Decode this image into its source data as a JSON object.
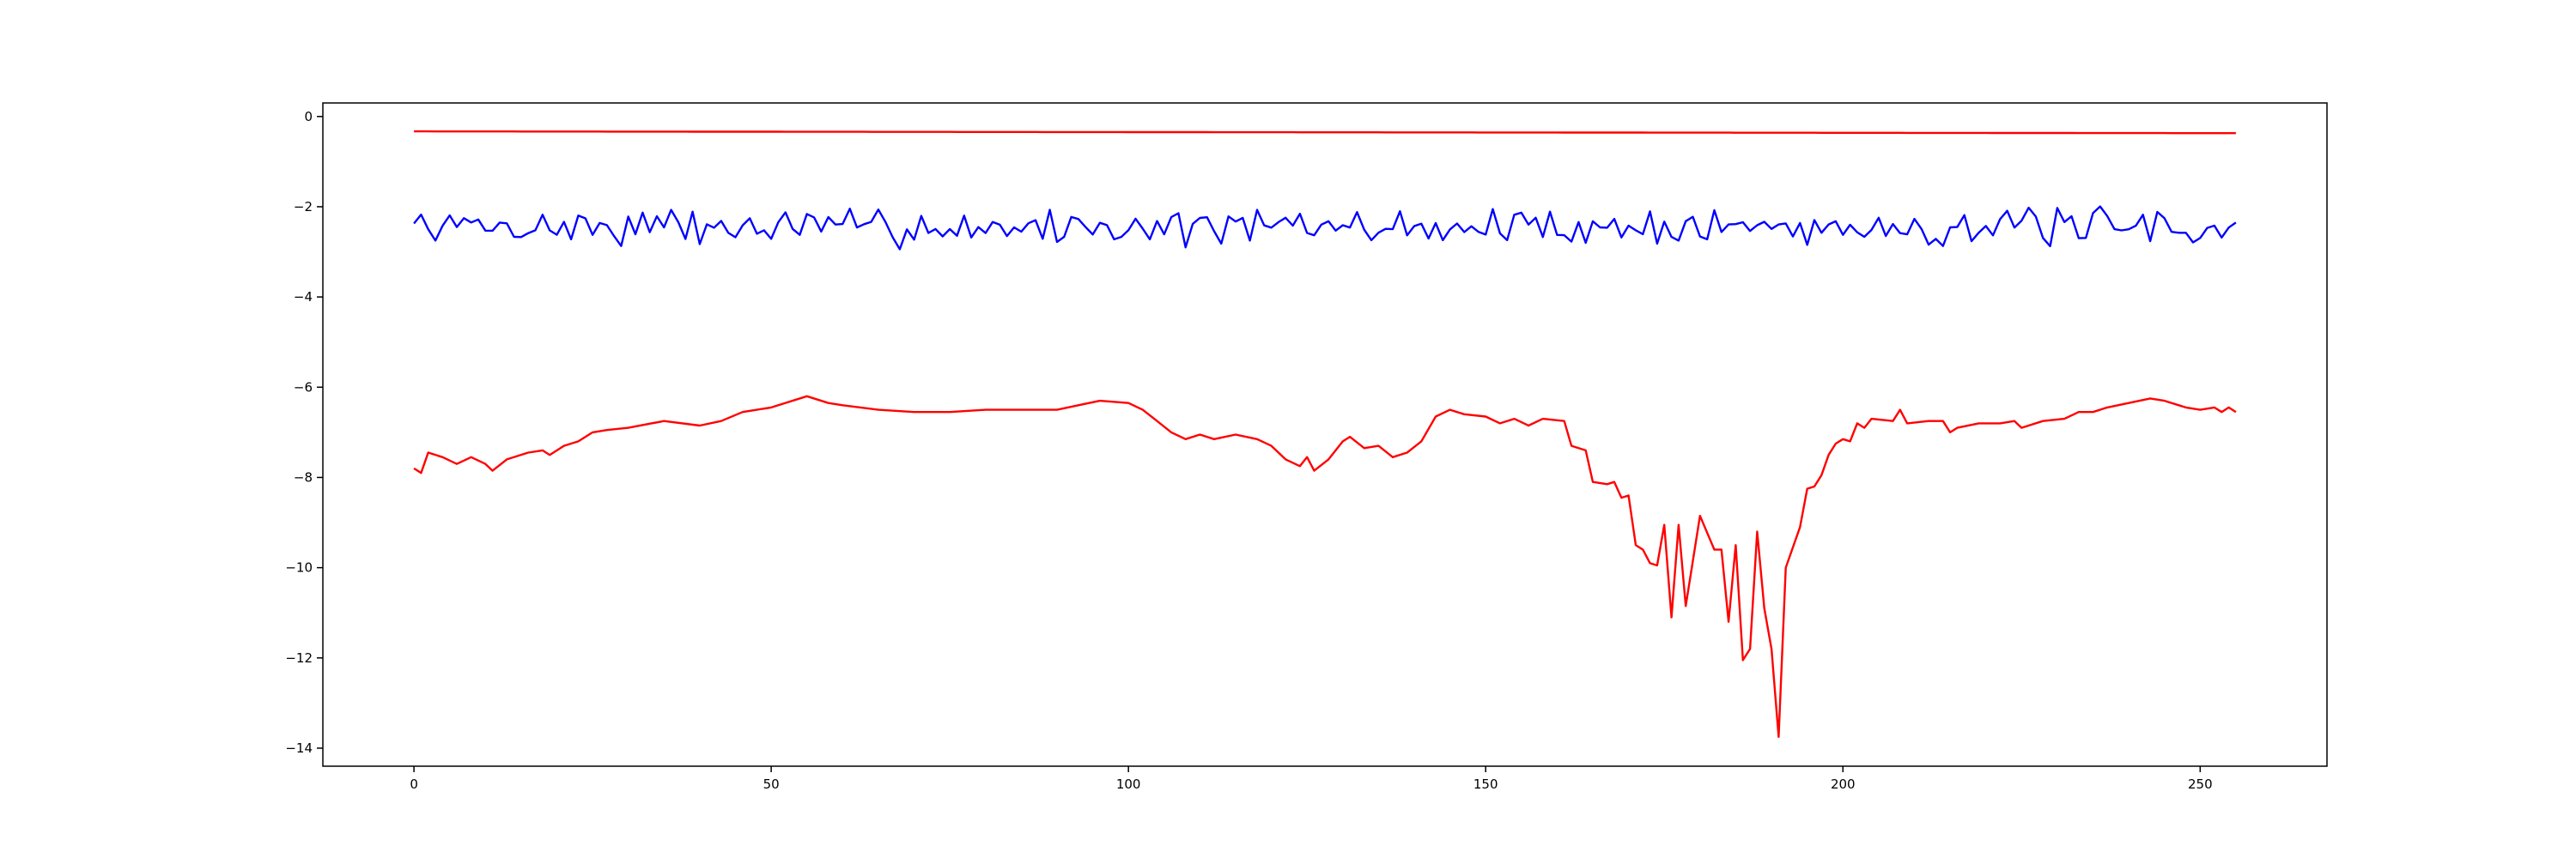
{
  "chart_data": {
    "type": "line",
    "title": "",
    "xlabel": "",
    "ylabel": "",
    "xlim": [
      -12.75,
      267.75
    ],
    "ylim": [
      -14.4,
      0.3
    ],
    "grid": false,
    "legend": "none",
    "xticks": [
      0,
      50,
      100,
      150,
      200,
      250
    ],
    "yticks": [
      0,
      -2,
      -4,
      -6,
      -8,
      -10,
      -12,
      -14
    ],
    "x_start": 0,
    "x_step": 1,
    "series": [
      {
        "color": "#ff0000",
        "style": "linear",
        "values": [
          -0.33,
          -0.37
        ]
      },
      {
        "color": "#0000ff",
        "style": "noise",
        "seed": 7,
        "mean": -2.45,
        "amplitude": 0.32,
        "count": 256
      },
      {
        "color": "#ff0000",
        "style": "points",
        "values": [
          [
            0,
            -7.8
          ],
          [
            1,
            -7.9
          ],
          [
            2,
            -7.45
          ],
          [
            4,
            -7.55
          ],
          [
            6,
            -7.7
          ],
          [
            8,
            -7.55
          ],
          [
            10,
            -7.7
          ],
          [
            11,
            -7.85
          ],
          [
            13,
            -7.6
          ],
          [
            16,
            -7.45
          ],
          [
            18,
            -7.4
          ],
          [
            19,
            -7.5
          ],
          [
            21,
            -7.3
          ],
          [
            23,
            -7.2
          ],
          [
            25,
            -7.0
          ],
          [
            27,
            -6.95
          ],
          [
            30,
            -6.9
          ],
          [
            35,
            -6.75
          ],
          [
            40,
            -6.85
          ],
          [
            43,
            -6.75
          ],
          [
            46,
            -6.55
          ],
          [
            50,
            -6.45
          ],
          [
            55,
            -6.2
          ],
          [
            58,
            -6.35
          ],
          [
            60,
            -6.4
          ],
          [
            65,
            -6.5
          ],
          [
            70,
            -6.55
          ],
          [
            75,
            -6.55
          ],
          [
            80,
            -6.5
          ],
          [
            85,
            -6.5
          ],
          [
            90,
            -6.5
          ],
          [
            93,
            -6.4
          ],
          [
            96,
            -6.3
          ],
          [
            100,
            -6.35
          ],
          [
            102,
            -6.5
          ],
          [
            104,
            -6.75
          ],
          [
            106,
            -7.0
          ],
          [
            108,
            -7.15
          ],
          [
            110,
            -7.05
          ],
          [
            112,
            -7.15
          ],
          [
            115,
            -7.05
          ],
          [
            118,
            -7.15
          ],
          [
            120,
            -7.3
          ],
          [
            122,
            -7.6
          ],
          [
            124,
            -7.75
          ],
          [
            125,
            -7.55
          ],
          [
            126,
            -7.85
          ],
          [
            128,
            -7.6
          ],
          [
            130,
            -7.2
          ],
          [
            131,
            -7.1
          ],
          [
            133,
            -7.35
          ],
          [
            135,
            -7.3
          ],
          [
            137,
            -7.55
          ],
          [
            139,
            -7.45
          ],
          [
            141,
            -7.2
          ],
          [
            143,
            -6.65
          ],
          [
            145,
            -6.5
          ],
          [
            147,
            -6.6
          ],
          [
            150,
            -6.65
          ],
          [
            152,
            -6.8
          ],
          [
            154,
            -6.7
          ],
          [
            156,
            -6.85
          ],
          [
            158,
            -6.7
          ],
          [
            161,
            -6.75
          ],
          [
            162,
            -7.3
          ],
          [
            164,
            -7.4
          ],
          [
            165,
            -8.1
          ],
          [
            167,
            -8.15
          ],
          [
            168,
            -8.1
          ],
          [
            169,
            -8.45
          ],
          [
            170,
            -8.4
          ],
          [
            171,
            -9.5
          ],
          [
            172,
            -9.6
          ],
          [
            173,
            -9.9
          ],
          [
            174,
            -9.95
          ],
          [
            175,
            -9.05
          ],
          [
            176,
            -11.1
          ],
          [
            177,
            -9.05
          ],
          [
            178,
            -10.85
          ],
          [
            180,
            -8.85
          ],
          [
            182,
            -9.6
          ],
          [
            183,
            -9.6
          ],
          [
            184,
            -11.2
          ],
          [
            185,
            -9.5
          ],
          [
            186,
            -12.05
          ],
          [
            187,
            -11.8
          ],
          [
            188,
            -9.2
          ],
          [
            189,
            -10.9
          ],
          [
            190,
            -11.8
          ],
          [
            191,
            -13.75
          ],
          [
            192,
            -10.0
          ],
          [
            194,
            -9.1
          ],
          [
            195,
            -8.25
          ],
          [
            196,
            -8.2
          ],
          [
            197,
            -7.95
          ],
          [
            198,
            -7.5
          ],
          [
            199,
            -7.25
          ],
          [
            200,
            -7.15
          ],
          [
            201,
            -7.2
          ],
          [
            202,
            -6.8
          ],
          [
            203,
            -6.9
          ],
          [
            204,
            -6.7
          ],
          [
            207,
            -6.75
          ],
          [
            208,
            -6.5
          ],
          [
            209,
            -6.8
          ],
          [
            212,
            -6.75
          ],
          [
            214,
            -6.75
          ],
          [
            215,
            -7.0
          ],
          [
            216,
            -6.9
          ],
          [
            219,
            -6.8
          ],
          [
            222,
            -6.8
          ],
          [
            224,
            -6.75
          ],
          [
            225,
            -6.9
          ],
          [
            228,
            -6.75
          ],
          [
            231,
            -6.7
          ],
          [
            233,
            -6.55
          ],
          [
            235,
            -6.55
          ],
          [
            237,
            -6.45
          ],
          [
            240,
            -6.35
          ],
          [
            243,
            -6.25
          ],
          [
            245,
            -6.3
          ],
          [
            248,
            -6.45
          ],
          [
            250,
            -6.5
          ],
          [
            252,
            -6.45
          ],
          [
            253,
            -6.55
          ],
          [
            254,
            -6.45
          ],
          [
            255,
            -6.55
          ]
        ]
      }
    ]
  }
}
